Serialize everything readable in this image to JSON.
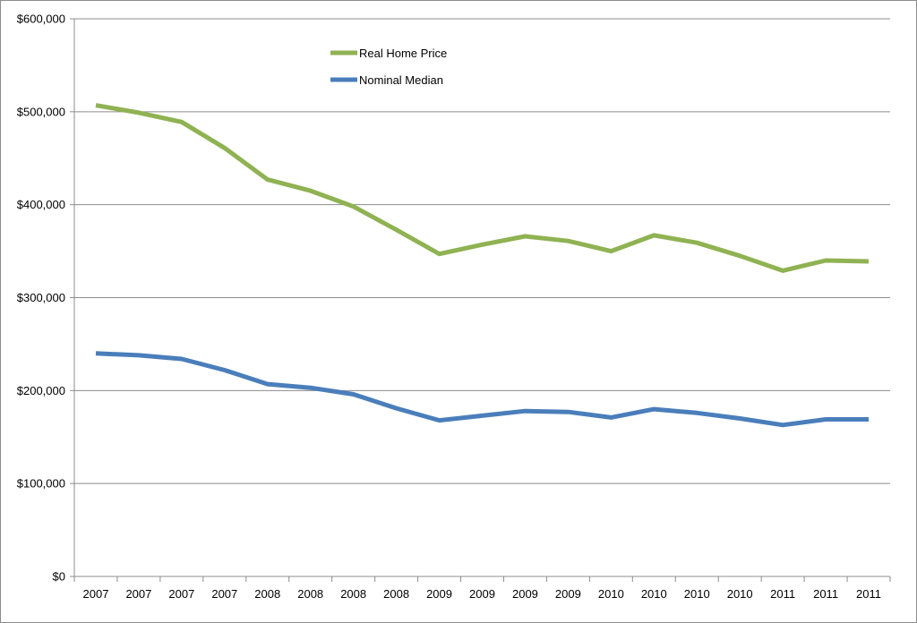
{
  "chart_data": {
    "type": "line",
    "title": "",
    "xlabel": "",
    "ylabel": "",
    "categories": [
      "2007",
      "2007",
      "2007",
      "2007",
      "2008",
      "2008",
      "2008",
      "2008",
      "2009",
      "2009",
      "2009",
      "2009",
      "2010",
      "2010",
      "2010",
      "2010",
      "2011",
      "2011",
      "2011"
    ],
    "ylim": [
      0,
      600000
    ],
    "y_ticks": [
      0,
      100000,
      200000,
      300000,
      400000,
      500000,
      600000
    ],
    "y_tick_labels": [
      "$0",
      "$100,000",
      "$200,000",
      "$300,000",
      "$400,000",
      "$500,000",
      "$600,000"
    ],
    "grid": true,
    "legend_position": "top-center",
    "series": [
      {
        "name": "Real Home Price",
        "color": "#8fb252",
        "values": [
          507000,
          499000,
          489000,
          461000,
          427000,
          415000,
          398000,
          373000,
          347000,
          357000,
          366000,
          361000,
          350000,
          367000,
          359000,
          345000,
          329000,
          340000,
          339000
        ]
      },
      {
        "name": "Nominal Median",
        "color": "#4a7ebb",
        "values": [
          240000,
          238000,
          234000,
          222000,
          207000,
          203000,
          196000,
          181000,
          168000,
          173000,
          178000,
          177000,
          171000,
          180000,
          176000,
          170000,
          163000,
          169000,
          169000
        ]
      }
    ]
  }
}
